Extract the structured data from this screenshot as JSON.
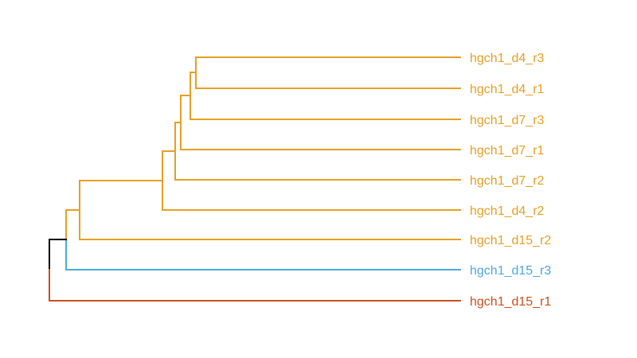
{
  "colors": {
    "orange": "#e69f23",
    "blue": "#4aa8e0",
    "red": "#c9501c",
    "black": "#000000"
  },
  "leaves": [
    {
      "label": "hgch1_d4_r3",
      "color": "orange"
    },
    {
      "label": "hgch1_d4_r1",
      "color": "orange"
    },
    {
      "label": "hgch1_d7_r3",
      "color": "orange"
    },
    {
      "label": "hgch1_d7_r1",
      "color": "orange"
    },
    {
      "label": "hgch1_d7_r2",
      "color": "orange"
    },
    {
      "label": "hgch1_d4_r2",
      "color": "orange"
    },
    {
      "label": "hgch1_d15_r2",
      "color": "orange"
    },
    {
      "label": "hgch1_d15_r3",
      "color": "blue"
    },
    {
      "label": "hgch1_d15_r1",
      "color": "red"
    }
  ]
}
